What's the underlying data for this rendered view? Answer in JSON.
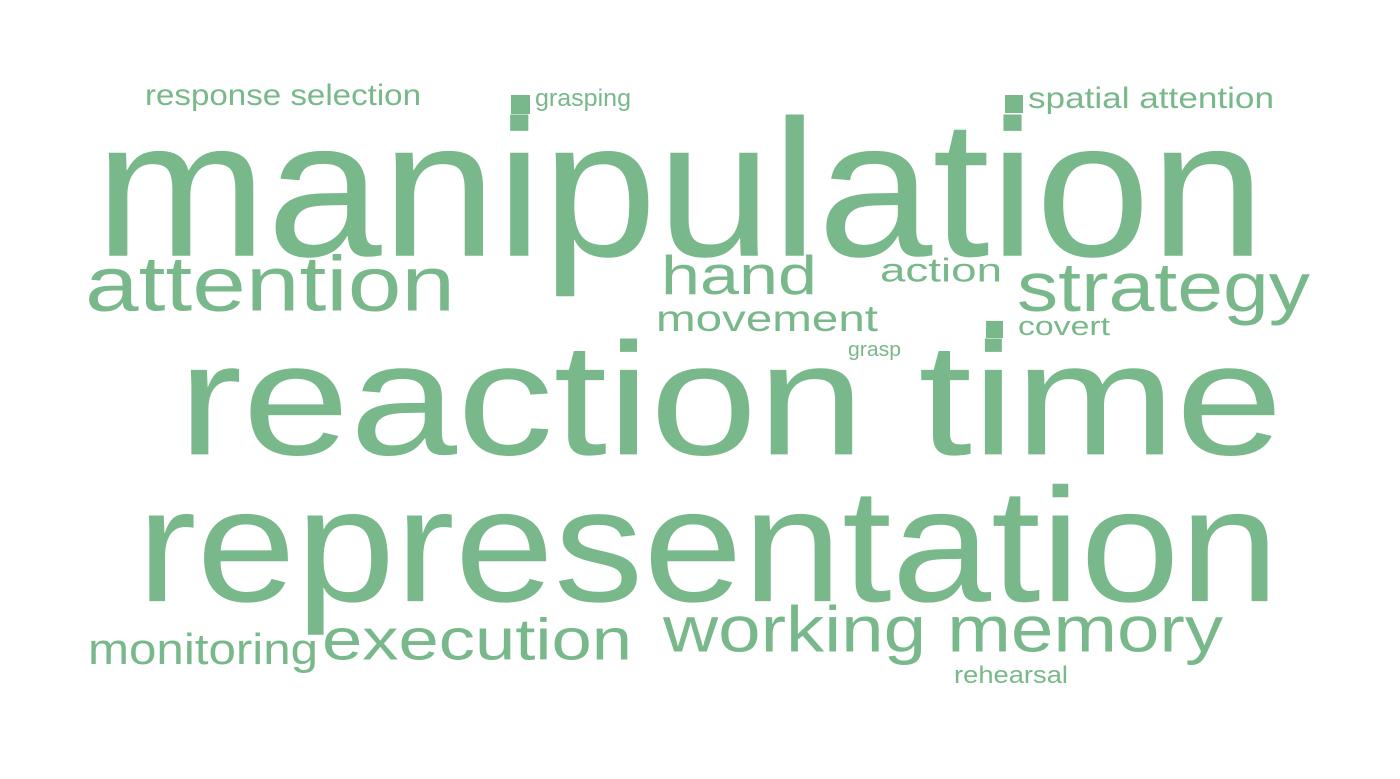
{
  "word_color": "#78b88a",
  "words": [
    {
      "id": "manipulation",
      "text": "manipulation",
      "weight": 1.0
    },
    {
      "id": "reaction-time",
      "text": "reaction time",
      "weight": 0.98
    },
    {
      "id": "representation",
      "text": "representation",
      "weight": 0.96
    },
    {
      "id": "attention",
      "text": "attention",
      "weight": 0.55
    },
    {
      "id": "strategy",
      "text": "strategy",
      "weight": 0.5
    },
    {
      "id": "working-memory",
      "text": "working memory",
      "weight": 0.47
    },
    {
      "id": "execution",
      "text": "execution",
      "weight": 0.47
    },
    {
      "id": "hand",
      "text": "hand",
      "weight": 0.44
    },
    {
      "id": "movement",
      "text": "movement",
      "weight": 0.3
    },
    {
      "id": "monitoring",
      "text": "monitoring",
      "weight": 0.3
    },
    {
      "id": "action",
      "text": "action",
      "weight": 0.28
    },
    {
      "id": "response-selection",
      "text": "response selection",
      "weight": 0.22
    },
    {
      "id": "spatial-attention",
      "text": "spatial attention",
      "weight": 0.22
    },
    {
      "id": "covert",
      "text": "covert",
      "weight": 0.2
    },
    {
      "id": "rehearsal",
      "text": "rehearsal",
      "weight": 0.18
    },
    {
      "id": "grasping",
      "text": "grasping",
      "weight": 0.15
    },
    {
      "id": "grasp",
      "text": "grasp",
      "weight": 0.14
    }
  ]
}
